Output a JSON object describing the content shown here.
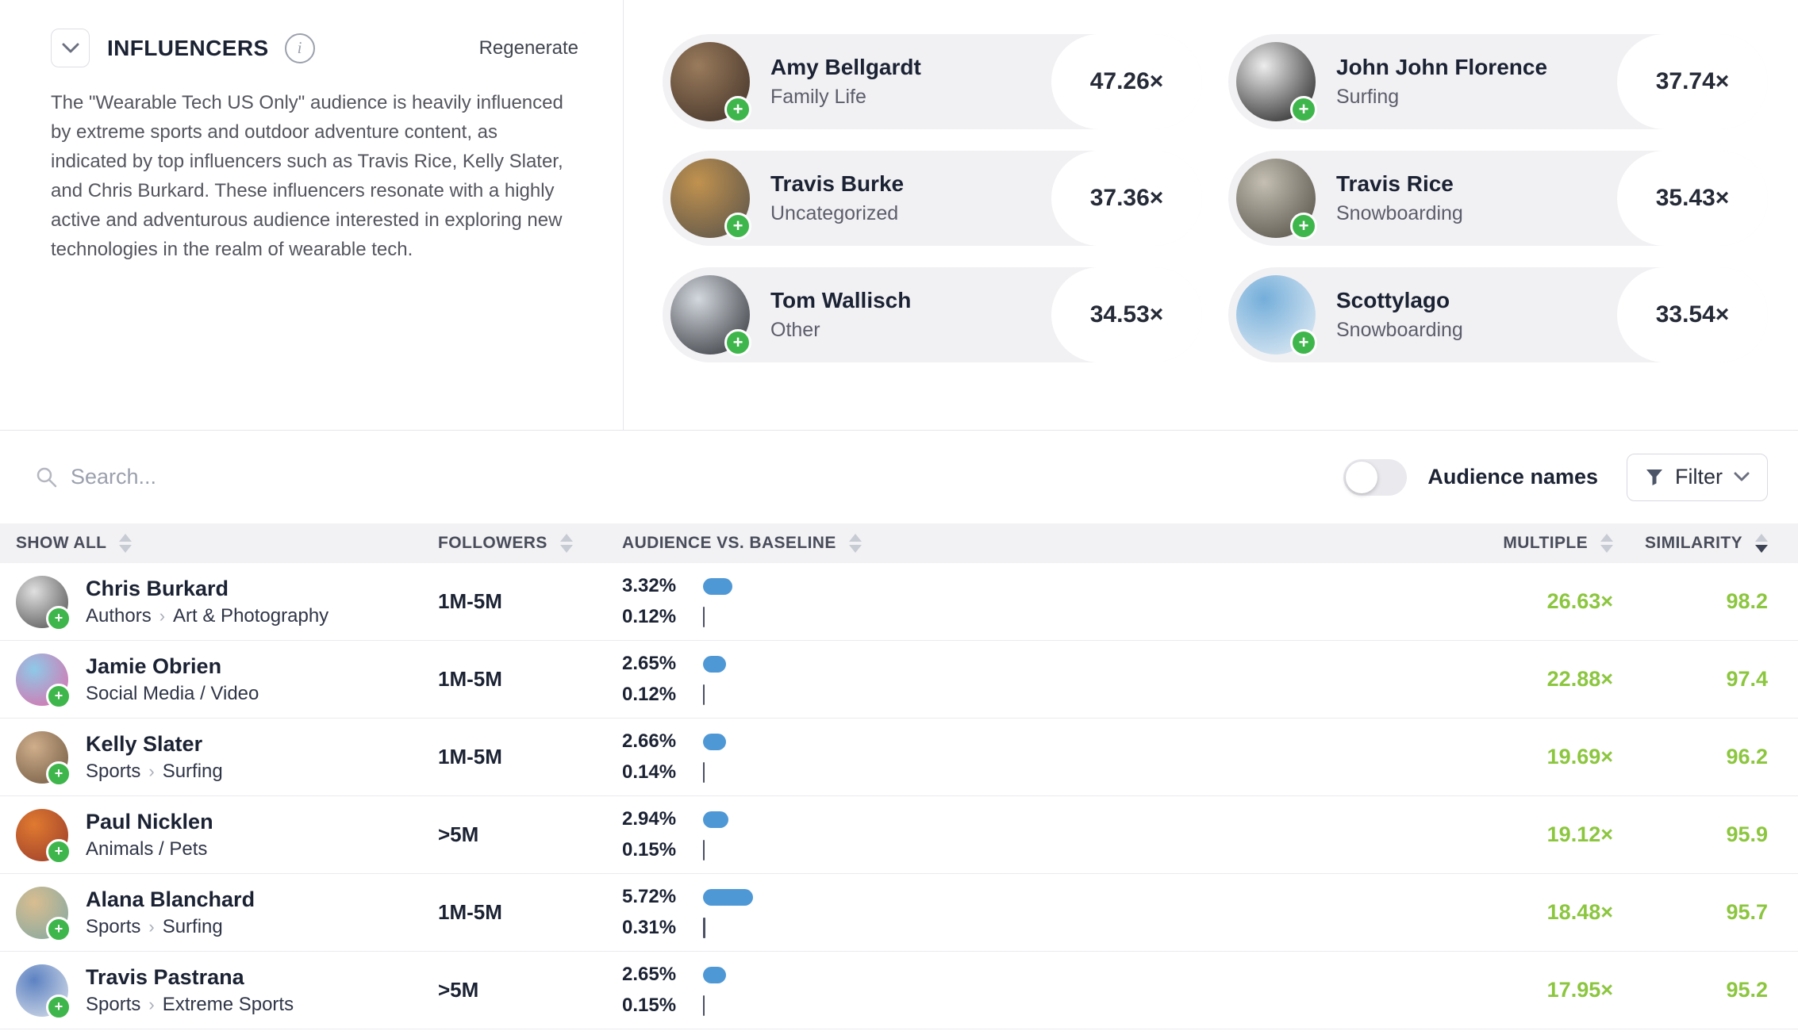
{
  "colors": {
    "green": "#8cc63f",
    "bar_blue": "#4f98d6",
    "bar_baseline": "#4b5064",
    "navy": "#1b2233",
    "card_bg": "#f1f1f4"
  },
  "panel": {
    "title": "INFLUENCERS",
    "regenerate_label": "Regenerate",
    "description": "The \"Wearable Tech US Only\" audience is heavily influenced by extreme sports and outdoor adventure content, as indicated by top influencers such as Travis Rice, Kelly Slater, and Chris Burkard. These influencers resonate with a highly active and adventurous audience interested in exploring new technologies in the realm of wearable tech."
  },
  "top_influencers": [
    {
      "name": "Amy Bellgardt",
      "category": "Family Life",
      "multiple": "47.26×",
      "avatar": [
        "#9a7b5c",
        "#3e2f26"
      ]
    },
    {
      "name": "John John Florence",
      "category": "Surfing",
      "multiple": "37.74×",
      "avatar": [
        "#ededed",
        "#151515"
      ]
    },
    {
      "name": "Travis Burke",
      "category": "Uncategorized",
      "multiple": "37.36×",
      "avatar": [
        "#c1924f",
        "#54504a"
      ]
    },
    {
      "name": "Travis Rice",
      "category": "Snowboarding",
      "multiple": "35.43×",
      "avatar": [
        "#c4bfb2",
        "#4e4a41"
      ]
    },
    {
      "name": "Tom Wallisch",
      "category": "Other",
      "multiple": "34.53×",
      "avatar": [
        "#d3d8de",
        "#2b2e33"
      ]
    },
    {
      "name": "Scottylago",
      "category": "Snowboarding",
      "multiple": "33.54×",
      "avatar": [
        "#74aeda",
        "#e9f0f6"
      ]
    }
  ],
  "toolbar": {
    "search_placeholder": "Search...",
    "audience_names_label": "Audience names",
    "audience_names_on": false,
    "filter_label": "Filter"
  },
  "table": {
    "breadcrumb_separator": "›",
    "headers": [
      {
        "label": "SHOW ALL",
        "sort": "none"
      },
      {
        "label": "FOLLOWERS",
        "sort": "none"
      },
      {
        "label": "AUDIENCE VS. BASELINE",
        "sort": "none"
      },
      {
        "label": "MULTIPLE",
        "sort": "none"
      },
      {
        "label": "SIMILARITY",
        "sort": "desc"
      }
    ],
    "rows": [
      {
        "name": "Chris Burkard",
        "category_parts": [
          "Authors",
          "Art & Photography"
        ],
        "followers": "1M-5M",
        "audience_pct": "3.32%",
        "audience_val": 3.32,
        "baseline_pct": "0.12%",
        "baseline_val": 0.12,
        "multiple": "26.63×",
        "similarity": "98.2",
        "avatar": [
          "#e0e0e0",
          "#4a4a4a"
        ]
      },
      {
        "name": "Jamie Obrien",
        "category_parts": [
          "Social Media / Video"
        ],
        "followers": "1M-5M",
        "audience_pct": "2.65%",
        "audience_val": 2.65,
        "baseline_pct": "0.12%",
        "baseline_val": 0.12,
        "multiple": "22.88×",
        "similarity": "97.4",
        "avatar": [
          "#8ec9e8",
          "#e06aa8"
        ]
      },
      {
        "name": "Kelly Slater",
        "category_parts": [
          "Sports",
          "Surfing"
        ],
        "followers": "1M-5M",
        "audience_pct": "2.66%",
        "audience_val": 2.66,
        "baseline_pct": "0.14%",
        "baseline_val": 0.14,
        "multiple": "19.69×",
        "similarity": "96.2",
        "avatar": [
          "#cfae8b",
          "#6e5740"
        ]
      },
      {
        "name": "Paul Nicklen",
        "category_parts": [
          "Animals / Pets"
        ],
        "followers": ">5M",
        "audience_pct": "2.94%",
        "audience_val": 2.94,
        "baseline_pct": "0.15%",
        "baseline_val": 0.15,
        "multiple": "19.12×",
        "similarity": "95.9",
        "avatar": [
          "#e07a30",
          "#993b2b"
        ]
      },
      {
        "name": "Alana Blanchard",
        "category_parts": [
          "Sports",
          "Surfing"
        ],
        "followers": "1M-5M",
        "audience_pct": "5.72%",
        "audience_val": 5.72,
        "baseline_pct": "0.31%",
        "baseline_val": 0.31,
        "multiple": "18.48×",
        "similarity": "95.7",
        "avatar": [
          "#d9bd90",
          "#7fa8a2"
        ]
      },
      {
        "name": "Travis Pastrana",
        "category_parts": [
          "Sports",
          "Extreme Sports"
        ],
        "followers": ">5M",
        "audience_pct": "2.65%",
        "audience_val": 2.65,
        "baseline_pct": "0.15%",
        "baseline_val": 0.15,
        "multiple": "17.95×",
        "similarity": "95.2",
        "avatar": [
          "#5d82c2",
          "#dde2ea"
        ]
      }
    ]
  }
}
